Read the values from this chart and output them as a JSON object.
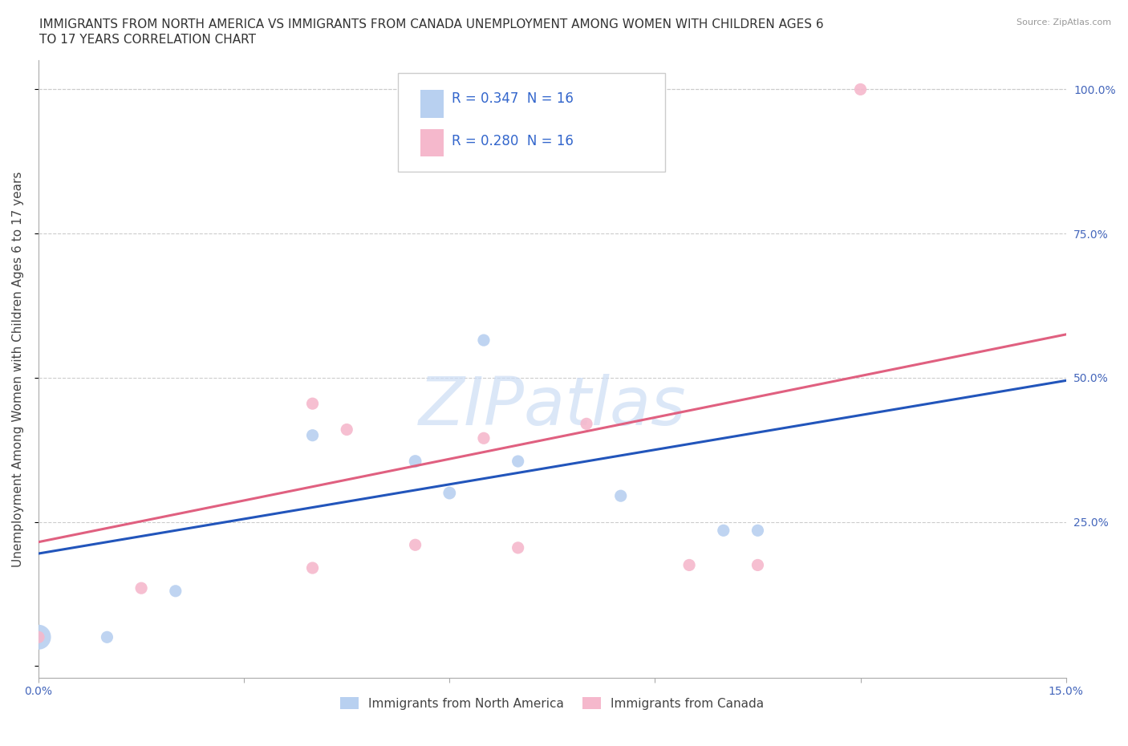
{
  "title_line1": "IMMIGRANTS FROM NORTH AMERICA VS IMMIGRANTS FROM CANADA UNEMPLOYMENT AMONG WOMEN WITH CHILDREN AGES 6",
  "title_line2": "TO 17 YEARS CORRELATION CHART",
  "source": "Source: ZipAtlas.com",
  "ylabel": "Unemployment Among Women with Children Ages 6 to 17 years",
  "xlim": [
    0.0,
    0.15
  ],
  "ylim": [
    -0.02,
    1.05
  ],
  "xticks": [
    0.0,
    0.03,
    0.06,
    0.09,
    0.12,
    0.15
  ],
  "xticklabels": [
    "0.0%",
    "",
    "",
    "",
    "",
    "15.0%"
  ],
  "ytick_positions": [
    0.0,
    0.25,
    0.5,
    0.75,
    1.0
  ],
  "ytick_labels_right": [
    "",
    "25.0%",
    "50.0%",
    "75.0%",
    "100.0%"
  ],
  "R_north_america": 0.347,
  "N_north_america": 16,
  "R_canada": 0.28,
  "N_canada": 16,
  "north_america_color": "#b8d0f0",
  "canada_color": "#f5b8cc",
  "line_north_america_color": "#2255bb",
  "line_canada_color": "#e06080",
  "north_america_points": {
    "x": [
      0.0,
      0.01,
      0.02,
      0.04,
      0.055,
      0.06,
      0.065,
      0.07,
      0.085,
      0.1,
      0.105
    ],
    "y": [
      0.05,
      0.05,
      0.13,
      0.4,
      0.355,
      0.3,
      0.565,
      0.355,
      0.295,
      0.235,
      0.235
    ],
    "size": [
      500,
      120,
      120,
      120,
      130,
      130,
      120,
      120,
      120,
      120,
      120
    ]
  },
  "canada_points": {
    "x": [
      0.0,
      0.015,
      0.04,
      0.045,
      0.055,
      0.065,
      0.07,
      0.08,
      0.095,
      0.105,
      0.12,
      0.04
    ],
    "y": [
      0.05,
      0.135,
      0.455,
      0.41,
      0.21,
      0.395,
      0.205,
      0.42,
      0.175,
      0.175,
      1.0,
      0.17
    ],
    "size": [
      120,
      120,
      120,
      120,
      120,
      120,
      120,
      120,
      120,
      120,
      120,
      120
    ]
  },
  "line_blue_y0": 0.195,
  "line_blue_y1": 0.495,
  "line_pink_y0": 0.215,
  "line_pink_y1": 0.575,
  "background_color": "#ffffff",
  "watermark_text": "ZIPatlas",
  "watermark_color": "#ccddf5",
  "grid_color": "#cccccc",
  "title_fontsize": 11,
  "ylabel_fontsize": 11,
  "tick_fontsize": 10,
  "source_fontsize": 8,
  "legend_r_color": "#3366cc",
  "legend_box_color": "#eeeeee"
}
